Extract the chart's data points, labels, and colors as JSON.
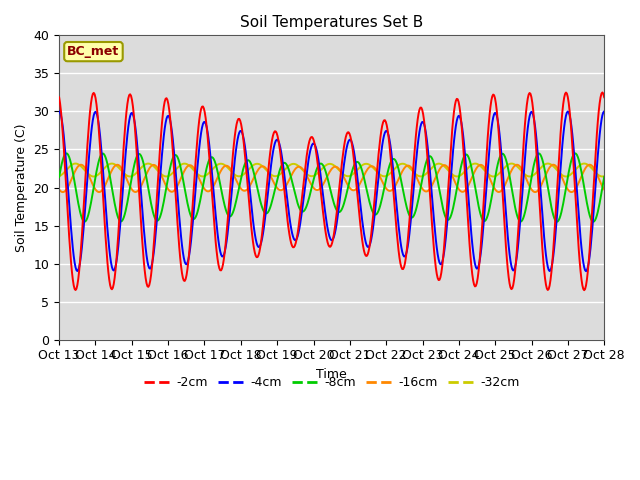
{
  "title": "Soil Temperatures Set B",
  "xlabel": "Time",
  "ylabel": "Soil Temperature (C)",
  "annotation": "BC_met",
  "ylim": [
    0,
    40
  ],
  "y_ticks": [
    0,
    5,
    10,
    15,
    20,
    25,
    30,
    35,
    40
  ],
  "x_labels": [
    "Oct 13",
    "Oct 14",
    "Oct 15",
    "Oct 16",
    "Oct 17",
    "Oct 18",
    "Oct 19",
    "Oct 20",
    "Oct 21",
    "Oct 22",
    "Oct 23",
    "Oct 24",
    "Oct 25",
    "Oct 26",
    "Oct 27",
    "Oct 28"
  ],
  "series_labels": [
    "-2cm",
    "-4cm",
    "-8cm",
    "-16cm",
    "-32cm"
  ],
  "series_colors": [
    "#ff0000",
    "#0000ff",
    "#00cc00",
    "#ff8800",
    "#cccc00"
  ],
  "n_points": 600,
  "background_color": "#e8e8e8",
  "plot_bg": "#dcdcdc",
  "fig_bg": "#ffffff"
}
